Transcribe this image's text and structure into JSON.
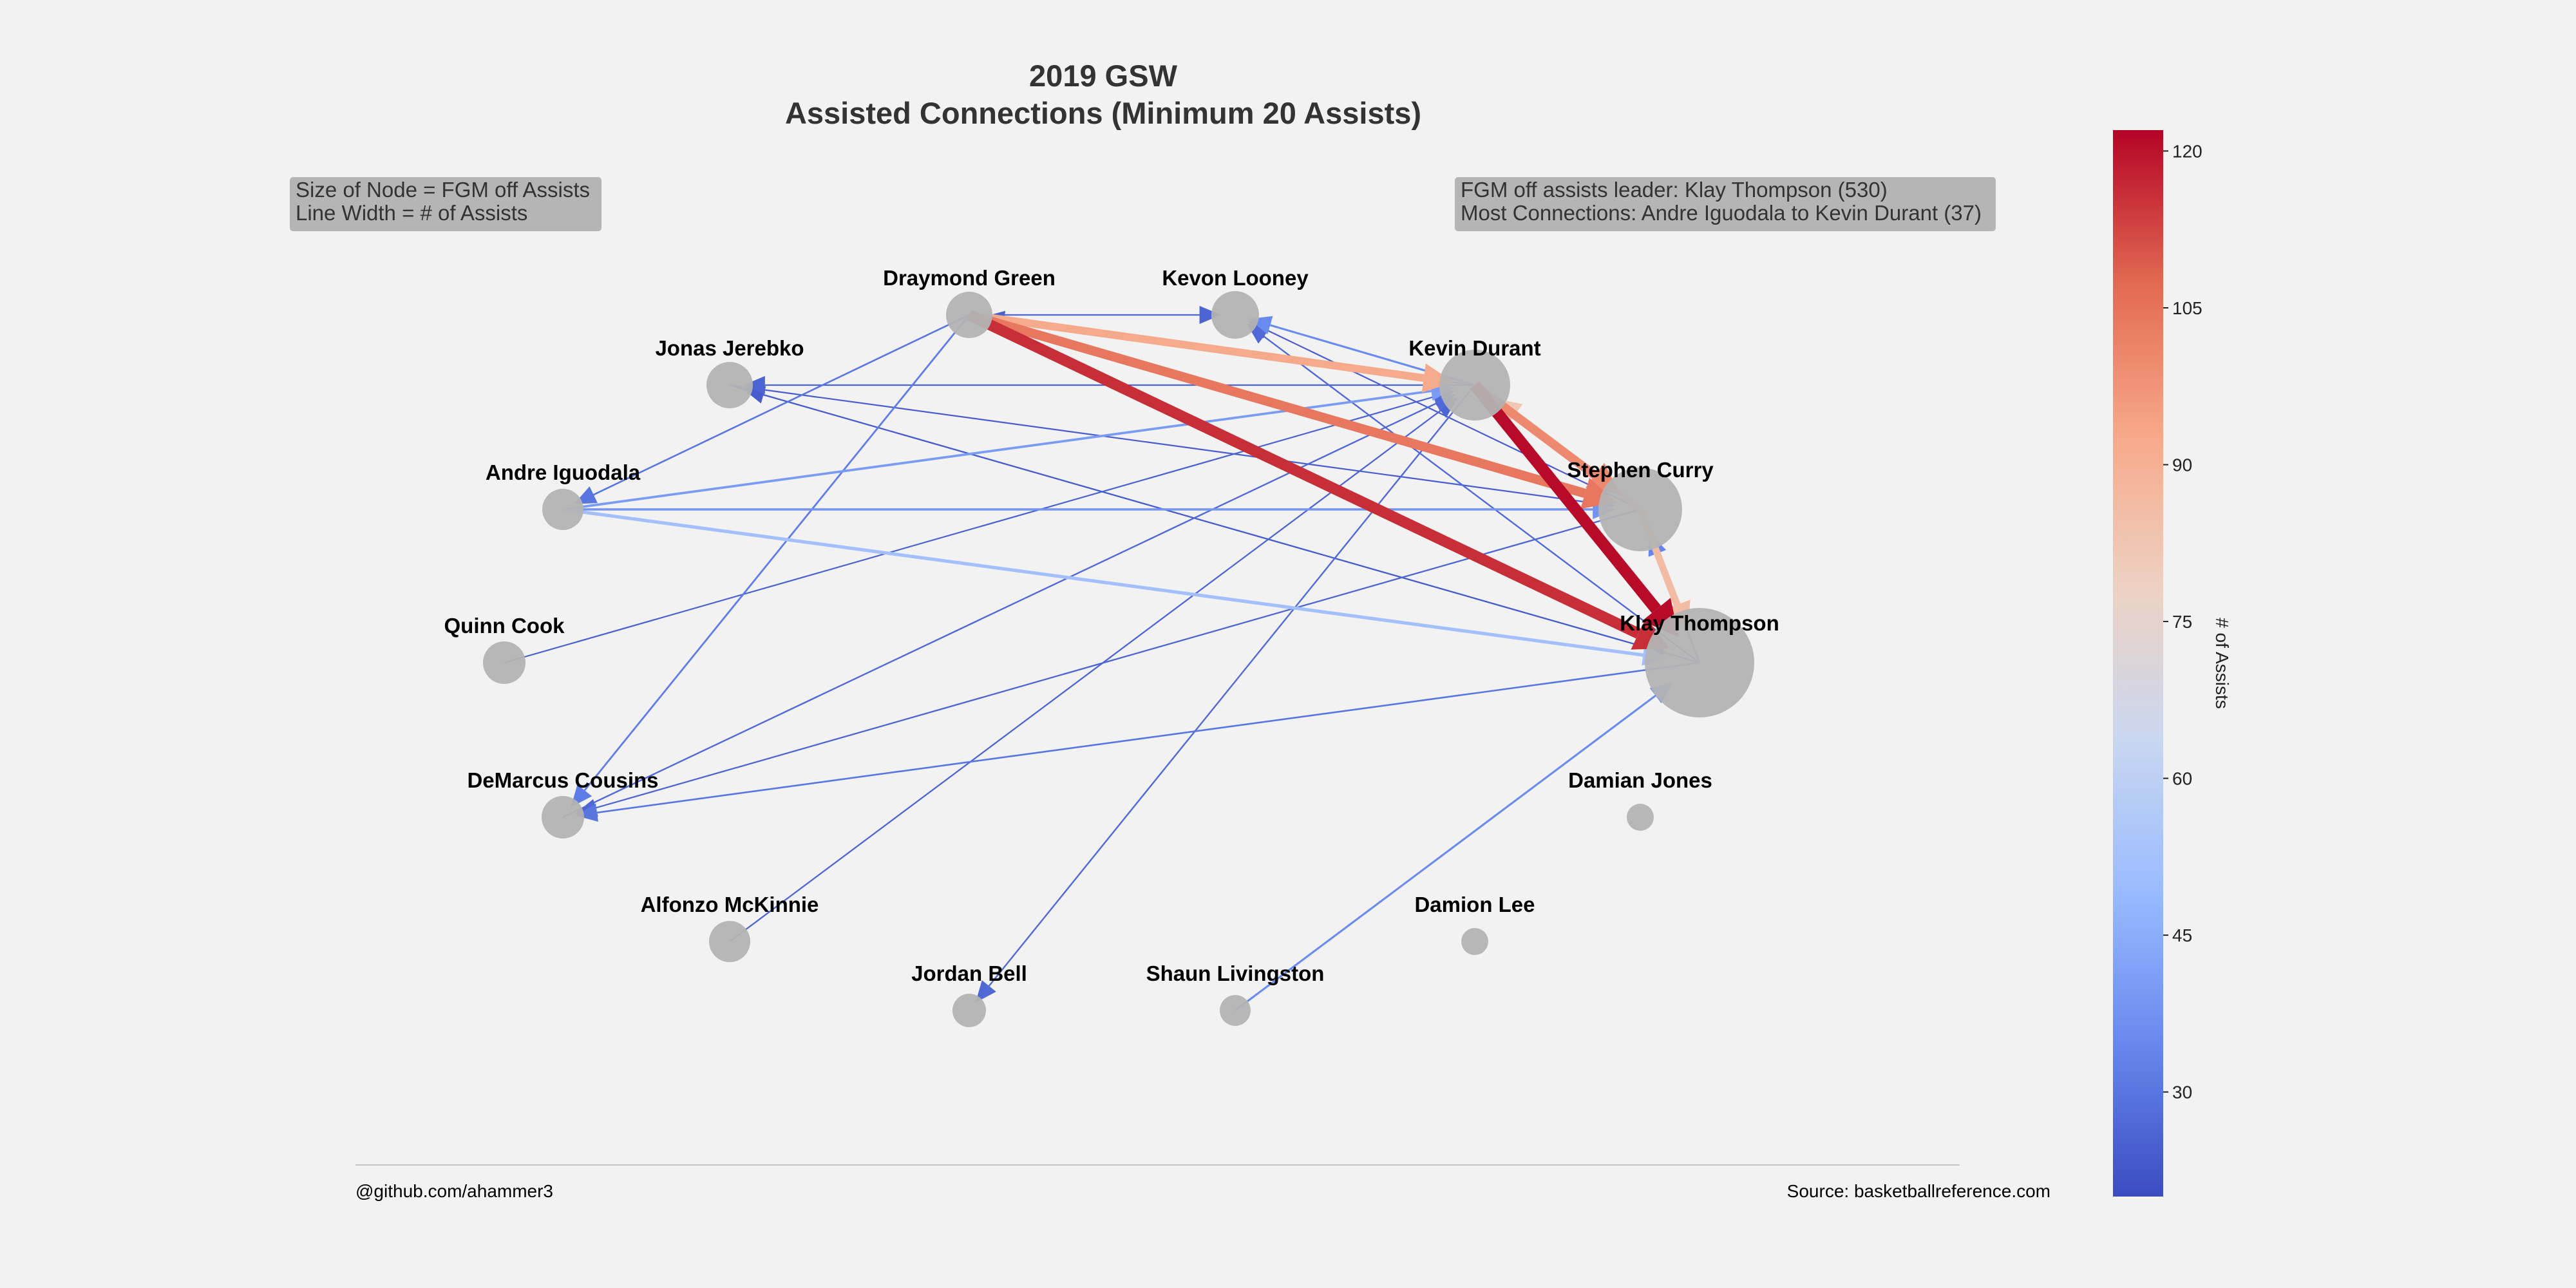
{
  "title_line1": "2019 GSW",
  "title_line2": "Assisted Connections (Minimum 20 Assists)",
  "legend_box": {
    "line1": "Size of Node = FGM off Assists",
    "line2": "Line Width = # of Assists"
  },
  "info_box": {
    "line1": "FGM off assists leader: Klay Thompson (530)",
    "line2": "Most Connections: Andre Iguodala to Kevin Durant (37)"
  },
  "footer_left": "@github.com/ahammer3",
  "footer_right": "Source: basketballreference.com",
  "colorbar": {
    "label": "# of Assists",
    "min": 20,
    "max": 122,
    "ticks": [
      "30",
      "45",
      "60",
      "75",
      "90",
      "105",
      "120"
    ],
    "colors": [
      "#3b4cc0",
      "#6788ee",
      "#9abbff",
      "#c9d7f0",
      "#edd1c2",
      "#f7a889",
      "#e26952",
      "#b40426"
    ]
  },
  "nodes": [
    {
      "id": "DG",
      "name": "Draymond Green"
    },
    {
      "id": "KL",
      "name": "Kevon Looney"
    },
    {
      "id": "KD",
      "name": "Kevin Durant"
    },
    {
      "id": "SC",
      "name": "Stephen Curry"
    },
    {
      "id": "KT",
      "name": "Klay Thompson"
    },
    {
      "id": "DJ",
      "name": "Damian Jones"
    },
    {
      "id": "DL",
      "name": "Damion Lee"
    },
    {
      "id": "SL",
      "name": "Shaun Livingston"
    },
    {
      "id": "JB",
      "name": "Jordan Bell"
    },
    {
      "id": "AM",
      "name": "Alfonzo McKinnie"
    },
    {
      "id": "DC",
      "name": "DeMarcus Cousins"
    },
    {
      "id": "QC",
      "name": "Quinn Cook"
    },
    {
      "id": "AI",
      "name": "Andre Iguodala"
    },
    {
      "id": "JJ",
      "name": "Jonas Jerebko"
    }
  ]
}
